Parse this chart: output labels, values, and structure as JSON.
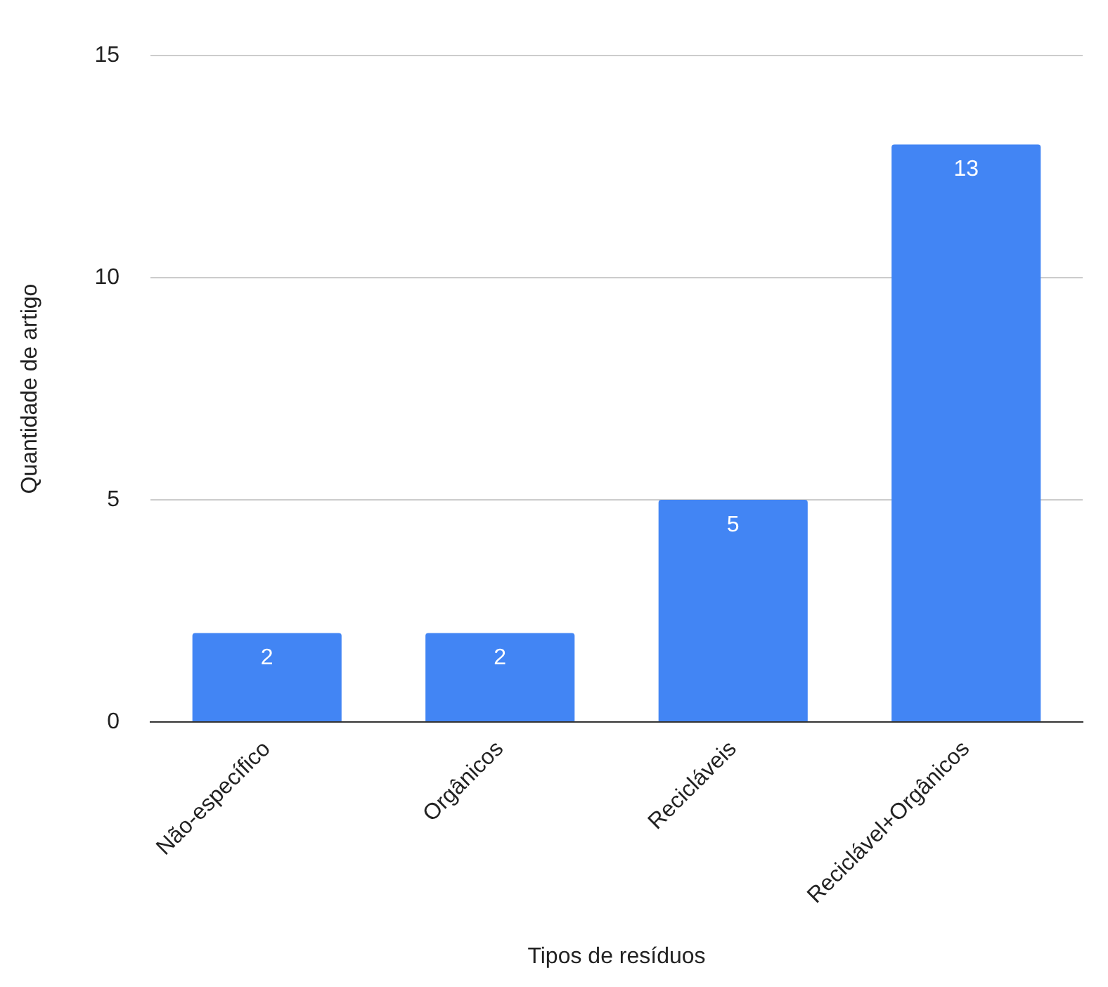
{
  "chart_data": {
    "type": "bar",
    "xlabel": "Tipos de resíduos",
    "ylabel": "Quantidade de artigo",
    "categories": [
      "Não-específico",
      "Orgânicos",
      "Recicláveis",
      "Reciclável+Orgânicos"
    ],
    "values": [
      2,
      2,
      5,
      13
    ],
    "color": "#4285f4",
    "ylim": [
      0,
      15
    ],
    "yticks": [
      0,
      5,
      10,
      15
    ],
    "grid": "y",
    "data_labels": true
  }
}
